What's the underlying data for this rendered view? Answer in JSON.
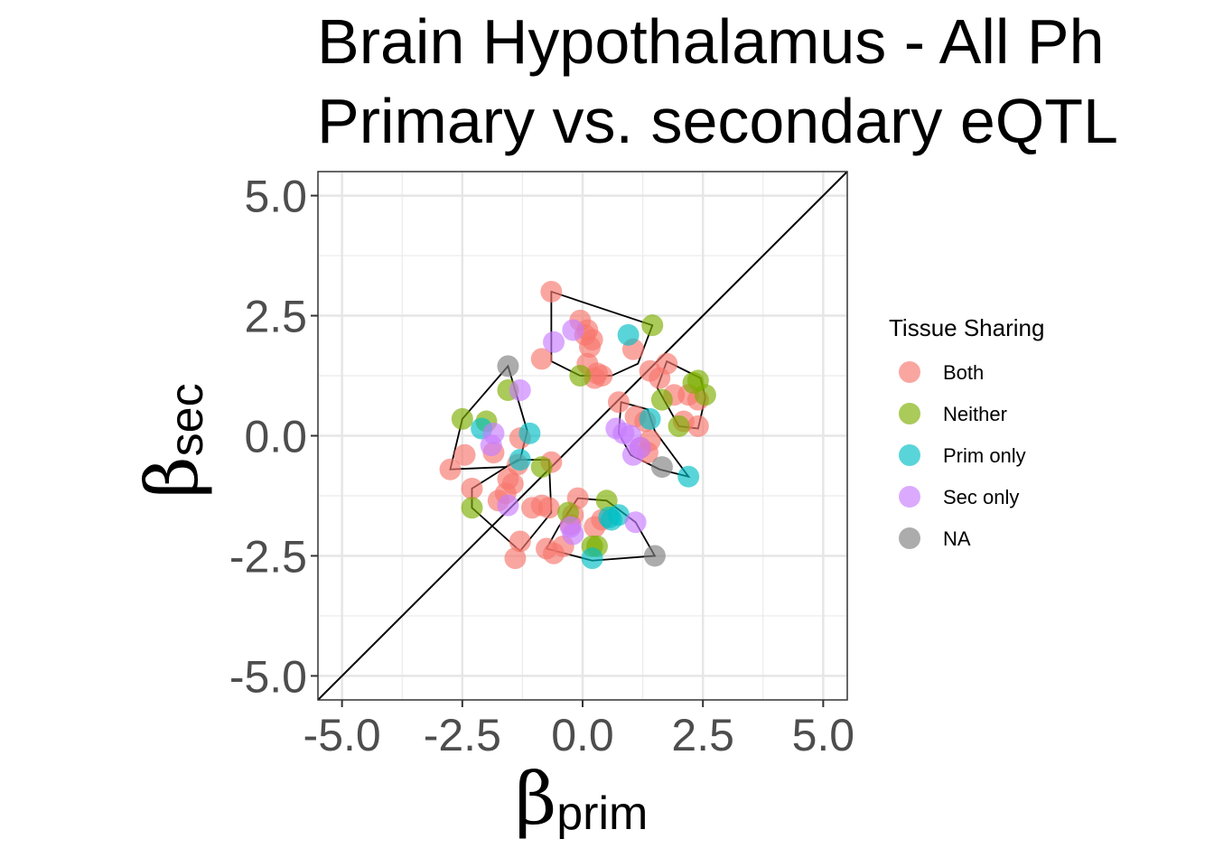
{
  "chart_data": {
    "type": "scatter",
    "title_line1": "Brain Hypothalamus - All Ph",
    "title_line2": "Primary vs. secondary eQTL",
    "xlabel_symbol": "β",
    "xlabel_sub": "prim",
    "ylabel_symbol": "β",
    "ylabel_sub": "sec",
    "xlim": [
      -5.5,
      5.5
    ],
    "ylim": [
      -5.5,
      5.5
    ],
    "x_ticks": [
      -5.0,
      -2.5,
      0.0,
      2.5,
      5.0
    ],
    "y_ticks": [
      -5.0,
      -2.5,
      0.0,
      2.5,
      5.0
    ],
    "x_tick_labels": [
      "-5.0",
      "-2.5",
      "0.0",
      "2.5",
      "5.0"
    ],
    "y_tick_labels": [
      "-5.0",
      "-2.5",
      "0.0",
      "2.5",
      "5.0"
    ],
    "grid": true,
    "reference_line": "y = x",
    "legend": {
      "title": "Tissue Sharing",
      "position": "right",
      "entries": [
        {
          "label": "Both",
          "color": "#F8766D"
        },
        {
          "label": "Neither",
          "color": "#7CAE00"
        },
        {
          "label": "Prim only",
          "color": "#00BFC4"
        },
        {
          "label": "Sec only",
          "color": "#C77CFF"
        },
        {
          "label": "NA",
          "color": "#7F7F7F"
        }
      ]
    },
    "series": [
      {
        "name": "Both",
        "color": "#F8766D",
        "points": [
          [
            -0.65,
            3.0
          ],
          [
            -0.05,
            2.4
          ],
          [
            0.1,
            2.2
          ],
          [
            0.2,
            2.0
          ],
          [
            0.15,
            1.85
          ],
          [
            0.05,
            2.1
          ],
          [
            -0.85,
            1.6
          ],
          [
            0.1,
            1.5
          ],
          [
            0.3,
            1.3
          ],
          [
            0.4,
            1.25
          ],
          [
            0.25,
            1.2
          ],
          [
            1.05,
            1.8
          ],
          [
            1.75,
            1.5
          ],
          [
            1.4,
            1.35
          ],
          [
            1.6,
            1.2
          ],
          [
            1.9,
            0.85
          ],
          [
            2.2,
            0.85
          ],
          [
            2.4,
            0.75
          ],
          [
            2.4,
            0.2
          ],
          [
            2.1,
            0.3
          ],
          [
            0.75,
            0.7
          ],
          [
            1.1,
            0.4
          ],
          [
            1.3,
            0.3
          ],
          [
            1.4,
            -0.1
          ],
          [
            1.2,
            -0.25
          ],
          [
            1.35,
            -0.35
          ],
          [
            -2.75,
            -0.7
          ],
          [
            -2.45,
            -0.4
          ],
          [
            -1.3,
            -0.05
          ],
          [
            -1.85,
            -0.35
          ],
          [
            -1.35,
            -0.6
          ],
          [
            -0.65,
            -0.55
          ],
          [
            -1.55,
            -0.9
          ],
          [
            -1.45,
            -1.0
          ],
          [
            -2.3,
            -1.1
          ],
          [
            -1.6,
            -1.2
          ],
          [
            -1.75,
            -1.35
          ],
          [
            -1.05,
            -1.5
          ],
          [
            -0.7,
            -1.5
          ],
          [
            -0.85,
            -1.45
          ],
          [
            -0.1,
            -1.3
          ],
          [
            -0.2,
            -1.65
          ],
          [
            -0.25,
            -1.85
          ],
          [
            0.25,
            -1.9
          ],
          [
            0.4,
            -1.75
          ],
          [
            -1.3,
            -2.2
          ],
          [
            -1.4,
            -2.55
          ],
          [
            -0.75,
            -2.35
          ],
          [
            -0.6,
            -2.45
          ],
          [
            -0.4,
            -2.3
          ]
        ]
      },
      {
        "name": "Neither",
        "color": "#7CAE00",
        "points": [
          [
            1.45,
            2.3
          ],
          [
            -0.05,
            1.25
          ],
          [
            1.65,
            0.75
          ],
          [
            2.3,
            1.1
          ],
          [
            2.4,
            1.15
          ],
          [
            2.55,
            0.85
          ],
          [
            2.0,
            0.2
          ],
          [
            -2.5,
            0.35
          ],
          [
            -2.0,
            0.3
          ],
          [
            -1.55,
            0.95
          ],
          [
            -2.3,
            -1.5
          ],
          [
            -0.85,
            -0.65
          ],
          [
            -0.3,
            -1.6
          ],
          [
            0.5,
            -1.35
          ],
          [
            0.2,
            -2.3
          ],
          [
            0.3,
            -2.3
          ]
        ]
      },
      {
        "name": "Prim only",
        "color": "#00BFC4",
        "points": [
          [
            0.95,
            2.1
          ],
          [
            -2.1,
            0.15
          ],
          [
            -1.1,
            0.05
          ],
          [
            -1.3,
            -0.5
          ],
          [
            1.4,
            0.35
          ],
          [
            0.55,
            -1.7
          ],
          [
            0.6,
            -1.75
          ],
          [
            0.75,
            -1.65
          ],
          [
            0.2,
            -2.55
          ],
          [
            2.2,
            -0.85
          ]
        ]
      },
      {
        "name": "Sec only",
        "color": "#C77CFF",
        "points": [
          [
            -0.2,
            2.2
          ],
          [
            -0.6,
            1.95
          ],
          [
            -1.3,
            0.95
          ],
          [
            -1.9,
            -0.2
          ],
          [
            -1.85,
            0.05
          ],
          [
            -1.55,
            -1.45
          ],
          [
            0.7,
            0.15
          ],
          [
            0.85,
            0.05
          ],
          [
            1.0,
            0.0
          ],
          [
            1.2,
            -0.25
          ],
          [
            1.05,
            -0.4
          ],
          [
            1.1,
            -1.8
          ],
          [
            -0.2,
            -2.05
          ],
          [
            -0.25,
            -1.9
          ]
        ]
      },
      {
        "name": "NA",
        "color": "#7F7F7F",
        "points": [
          [
            -1.55,
            1.45
          ],
          [
            1.65,
            -0.65
          ],
          [
            1.5,
            -2.5
          ]
        ]
      }
    ],
    "hulls": [
      [
        [
          -0.65,
          3.0
        ],
        [
          1.45,
          2.3
        ],
        [
          1.15,
          1.5
        ],
        [
          0.6,
          1.25
        ],
        [
          -0.05,
          1.25
        ],
        [
          -0.65,
          1.55
        ]
      ],
      [
        [
          1.75,
          1.55
        ],
        [
          2.45,
          1.2
        ],
        [
          2.55,
          0.8
        ],
        [
          2.4,
          0.15
        ],
        [
          2.0,
          0.2
        ],
        [
          1.55,
          1.0
        ]
      ],
      [
        [
          0.8,
          0.7
        ],
        [
          1.35,
          0.55
        ],
        [
          1.5,
          0.1
        ],
        [
          2.2,
          -0.85
        ],
        [
          1.6,
          -0.7
        ],
        [
          1.0,
          -0.4
        ],
        [
          0.75,
          0.05
        ]
      ],
      [
        [
          -1.55,
          1.45
        ],
        [
          -1.15,
          0.1
        ],
        [
          -1.3,
          -0.5
        ],
        [
          -1.6,
          -0.65
        ],
        [
          -2.75,
          -0.7
        ],
        [
          -2.5,
          0.35
        ]
      ],
      [
        [
          -0.7,
          -0.5
        ],
        [
          -0.65,
          -1.6
        ],
        [
          -1.3,
          -2.4
        ],
        [
          -2.3,
          -1.5
        ],
        [
          -2.3,
          -1.1
        ],
        [
          -1.35,
          -0.5
        ]
      ],
      [
        [
          -0.1,
          -1.3
        ],
        [
          0.5,
          -1.35
        ],
        [
          1.1,
          -1.8
        ],
        [
          1.5,
          -2.5
        ],
        [
          0.2,
          -2.6
        ],
        [
          -0.75,
          -2.35
        ],
        [
          -0.5,
          -1.9
        ]
      ]
    ]
  }
}
